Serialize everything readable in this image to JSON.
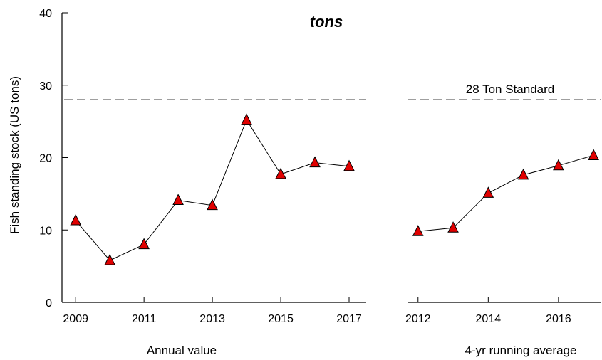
{
  "chart_title_fragment": "tons",
  "y_axis_label": "Fish standing stock (US tons)",
  "standard_label": "28 Ton Standard",
  "colors": {
    "marker_fill": "#e00000",
    "line": "#000000",
    "reference_line": "#000000"
  },
  "chart_data": [
    {
      "type": "line",
      "xlabel": "Annual value",
      "ylabel": "Fish standing stock (US tons)",
      "ylim": [
        0,
        40
      ],
      "yticks": [
        "0",
        "10",
        "20",
        "30",
        "40"
      ],
      "xlim": [
        2008.6,
        2017.5
      ],
      "xticks": [
        "2009",
        "2011",
        "2013",
        "2015",
        "2017"
      ],
      "marker": "triangle",
      "reference_line": {
        "y": 28,
        "style": "dashed"
      },
      "series": [
        {
          "x": [
            2009,
            2010,
            2011,
            2012,
            2013,
            2014,
            2015,
            2016,
            2017
          ],
          "y": [
            11.3,
            5.8,
            8.0,
            14.1,
            13.4,
            25.2,
            17.7,
            19.3,
            18.8
          ]
        }
      ]
    },
    {
      "type": "line",
      "xlabel": "4-yr running average",
      "ylim": [
        0,
        40
      ],
      "xlim": [
        2011.7,
        2017.2
      ],
      "xticks": [
        "2012",
        "2014",
        "2016"
      ],
      "marker": "triangle",
      "reference_line": {
        "y": 28,
        "style": "dashed",
        "label": "28 Ton Standard"
      },
      "series": [
        {
          "x": [
            2012,
            2013,
            2014,
            2015,
            2016,
            2017
          ],
          "y": [
            9.8,
            10.3,
            15.1,
            17.6,
            18.9,
            20.3
          ]
        }
      ]
    }
  ]
}
